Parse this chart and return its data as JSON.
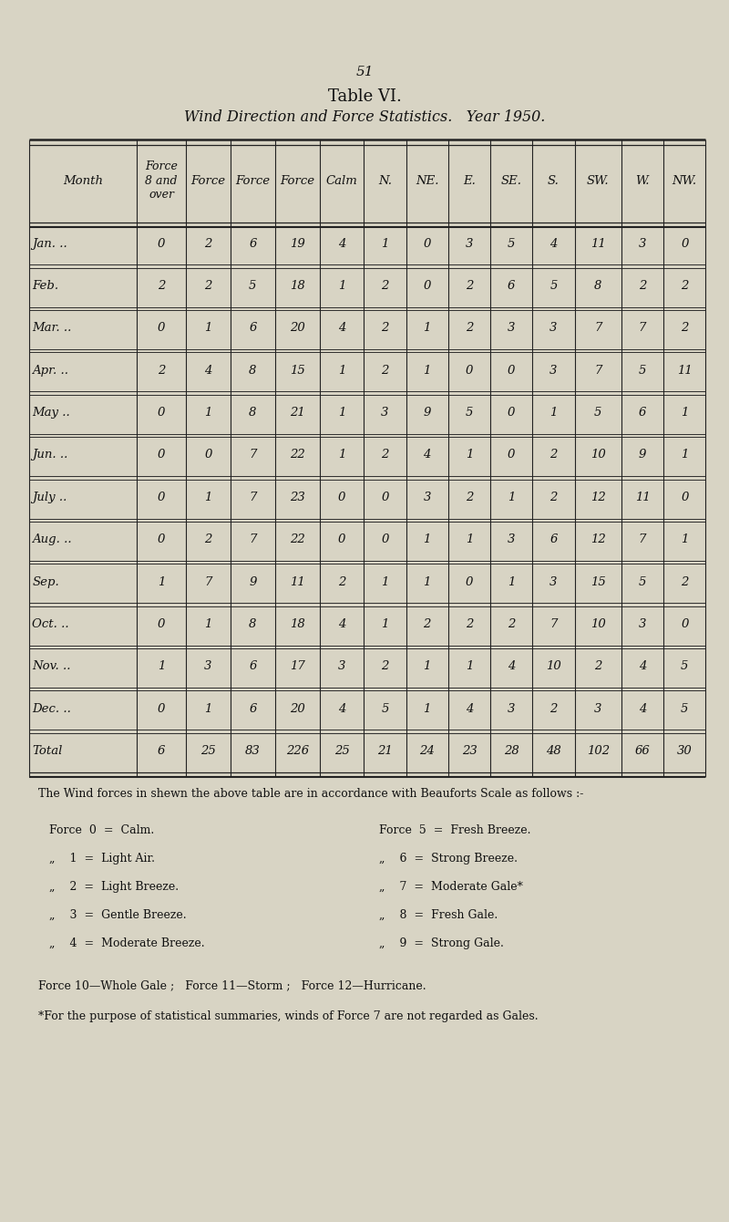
{
  "page_number": "51",
  "table_title": "Table VI.",
  "table_subtitle": "Wind Direction and Force Statistics.   Year 1950.",
  "bg_color": "#d8d4c4",
  "text_color": "#111111",
  "rows": [
    [
      "Jan. ..",
      "0",
      "2",
      "6",
      "19",
      "4",
      "1",
      "0",
      "3",
      "5",
      "4",
      "11",
      "3",
      "0"
    ],
    [
      "Feb.",
      "2",
      "2",
      "5",
      "18",
      "1",
      "2",
      "0",
      "2",
      "6",
      "5",
      "8",
      "2",
      "2"
    ],
    [
      "Mar. ..",
      "0",
      "1",
      "6",
      "20",
      "4",
      "2",
      "1",
      "2",
      "3",
      "3",
      "7",
      "7",
      "2"
    ],
    [
      "Apr. ..",
      "2",
      "4",
      "8",
      "15",
      "1",
      "2",
      "1",
      "0",
      "0",
      "3",
      "7",
      "5",
      "11"
    ],
    [
      "May ..",
      "0",
      "1",
      "8",
      "21",
      "1",
      "3",
      "9",
      "5",
      "0",
      "1",
      "5",
      "6",
      "1"
    ],
    [
      "Jun. ..",
      "0",
      "0",
      "7",
      "22",
      "1",
      "2",
      "4",
      "1",
      "0",
      "2",
      "10",
      "9",
      "1"
    ],
    [
      "July ..",
      "0",
      "1",
      "7",
      "23",
      "0",
      "0",
      "3",
      "2",
      "1",
      "2",
      "12",
      "11",
      "0"
    ],
    [
      "Aug. ..",
      "0",
      "2",
      "7",
      "22",
      "0",
      "0",
      "1",
      "1",
      "3",
      "6",
      "12",
      "7",
      "1"
    ],
    [
      "Sep.",
      "1",
      "7",
      "9",
      "11",
      "2",
      "1",
      "1",
      "0",
      "1",
      "3",
      "15",
      "5",
      "2"
    ],
    [
      "Oct. ..",
      "0",
      "1",
      "8",
      "18",
      "4",
      "1",
      "2",
      "2",
      "2",
      "7",
      "10",
      "3",
      "0"
    ],
    [
      "Nov. ..",
      "1",
      "3",
      "6",
      "17",
      "3",
      "2",
      "1",
      "1",
      "4",
      "10",
      "2",
      "4",
      "5"
    ],
    [
      "Dec. ..",
      "0",
      "1",
      "6",
      "20",
      "4",
      "5",
      "1",
      "4",
      "3",
      "2",
      "3",
      "4",
      "5"
    ],
    [
      "Total",
      "6",
      "25",
      "83",
      "226",
      "25",
      "21",
      "24",
      "23",
      "28",
      "48",
      "102",
      "66",
      "30"
    ]
  ],
  "footer_intro": "The Wind forces in shewn the above table are in accordance with Beauforts Scale as follows :-",
  "force_left": [
    "Force  0  =  Calm.",
    "„    1  =  Light Air.",
    "„    2  =  Light Breeze.",
    "„    3  =  Gentle Breeze.",
    "„    4  =  Moderate Breeze."
  ],
  "force_right": [
    "Force  5  =  Fresh Breeze.",
    "„    6  =  Strong Breeze.",
    "„    7  =  Moderate Gale*",
    "„    8  =  Fresh Gale.",
    "„    9  =  Strong Gale."
  ],
  "force_extra": "Force 10—Whole Gale ;   Force 11—Storm ;   Force 12—Hurricane.",
  "force_note": "*For the purpose of statistical summaries, winds of Force 7 are not regarded as Gales.",
  "col_widths_rel": [
    2.3,
    1.05,
    0.95,
    0.95,
    0.95,
    0.95,
    0.9,
    0.9,
    0.9,
    0.9,
    0.9,
    1.0,
    0.9,
    0.9
  ]
}
